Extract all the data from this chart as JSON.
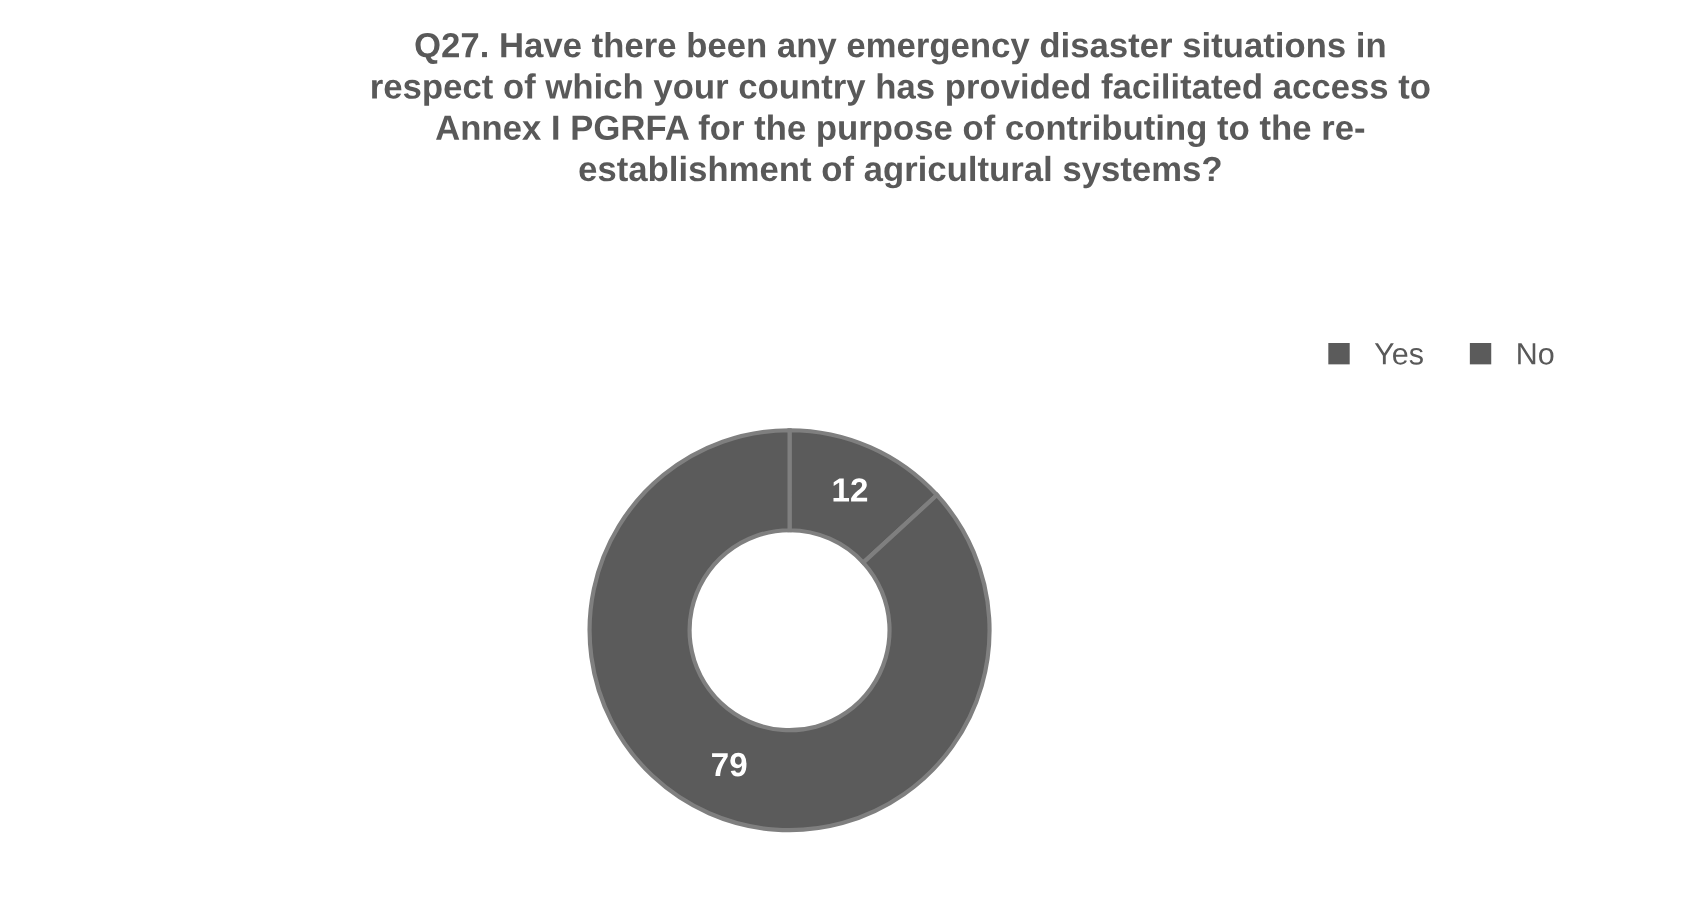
{
  "chart_data": {
    "type": "donut",
    "title": "Q27. Have there been any emergency disaster situations in\nrespect of which your country has provided facilitated access to\nAnnex I PGRFA for the purpose of contributing to the re-\nestablishment of agricultural systems?",
    "categories": [
      "Yes",
      "No"
    ],
    "values": [
      12,
      79
    ],
    "colors": [
      "#5b5b5b",
      "#5b5b5b"
    ],
    "data_labels": true,
    "legend": "right"
  }
}
